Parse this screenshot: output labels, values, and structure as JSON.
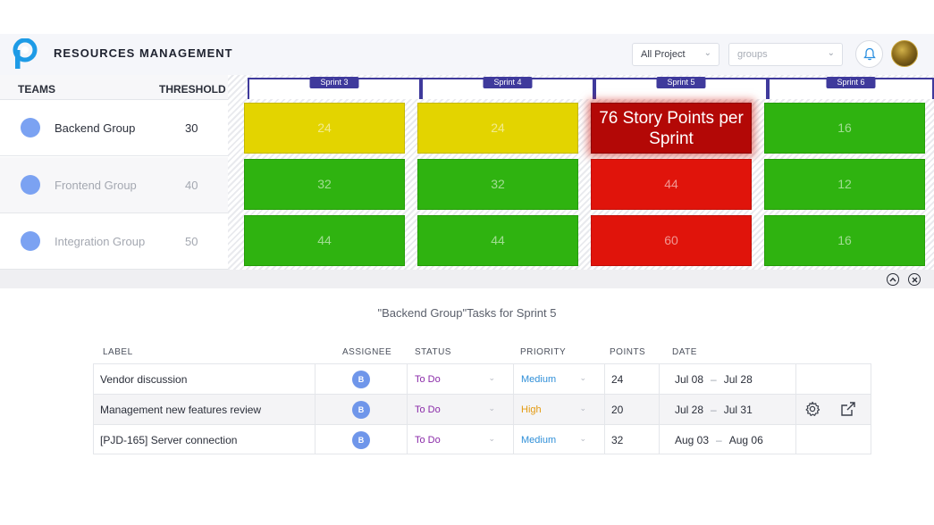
{
  "header": {
    "title": "RESOURCES MANAGEMENT",
    "project_select": "All Project",
    "groups_placeholder": "groups",
    "logo_icon": "p-logo-icon",
    "bell_icon": "bell-icon"
  },
  "teams_table": {
    "teams_label": "TEAMS",
    "threshold_label": "THRESHOLD",
    "rows": [
      {
        "name": "Backend Group",
        "threshold": "30"
      },
      {
        "name": "Frontend Group",
        "threshold": "40"
      },
      {
        "name": "Integration Group",
        "threshold": "50"
      }
    ]
  },
  "sprints": [
    "Sprint 3",
    "Sprint 4",
    "Sprint 5",
    "Sprint 6"
  ],
  "grid": {
    "rows": [
      [
        "24",
        "24",
        "76 Story Points per Sprint",
        "16"
      ],
      [
        "32",
        "32",
        "44",
        "12"
      ],
      [
        "44",
        "44",
        "60",
        "16"
      ]
    ],
    "colors": {
      "yellow": "#e3d400",
      "green": "#2fb310",
      "red": "#e0140b",
      "highlight": "#b30806"
    }
  },
  "tasks": {
    "title": "\"Backend Group\"Tasks for Sprint 5",
    "columns": {
      "label": "LABEL",
      "assignee": "ASSIGNEE",
      "status": "STATUS",
      "priority": "PRIORITY",
      "points": "POINTS",
      "date": "DATE"
    },
    "rows": [
      {
        "label": "Vendor discussion",
        "assignee": "B",
        "status": "To Do",
        "priority": "Medium",
        "points": "24",
        "start": "Jul 08",
        "end": "Jul 28"
      },
      {
        "label": "Management new features review",
        "assignee": "B",
        "status": "To Do",
        "priority": "High",
        "points": "20",
        "start": "Jul 28",
        "end": "Jul 31"
      },
      {
        "label": "[PJD-165] Server connection",
        "assignee": "B",
        "status": "To Do",
        "priority": "Medium",
        "points": "32",
        "start": "Aug 03",
        "end": "Aug 06"
      }
    ],
    "date_separator": "–"
  }
}
